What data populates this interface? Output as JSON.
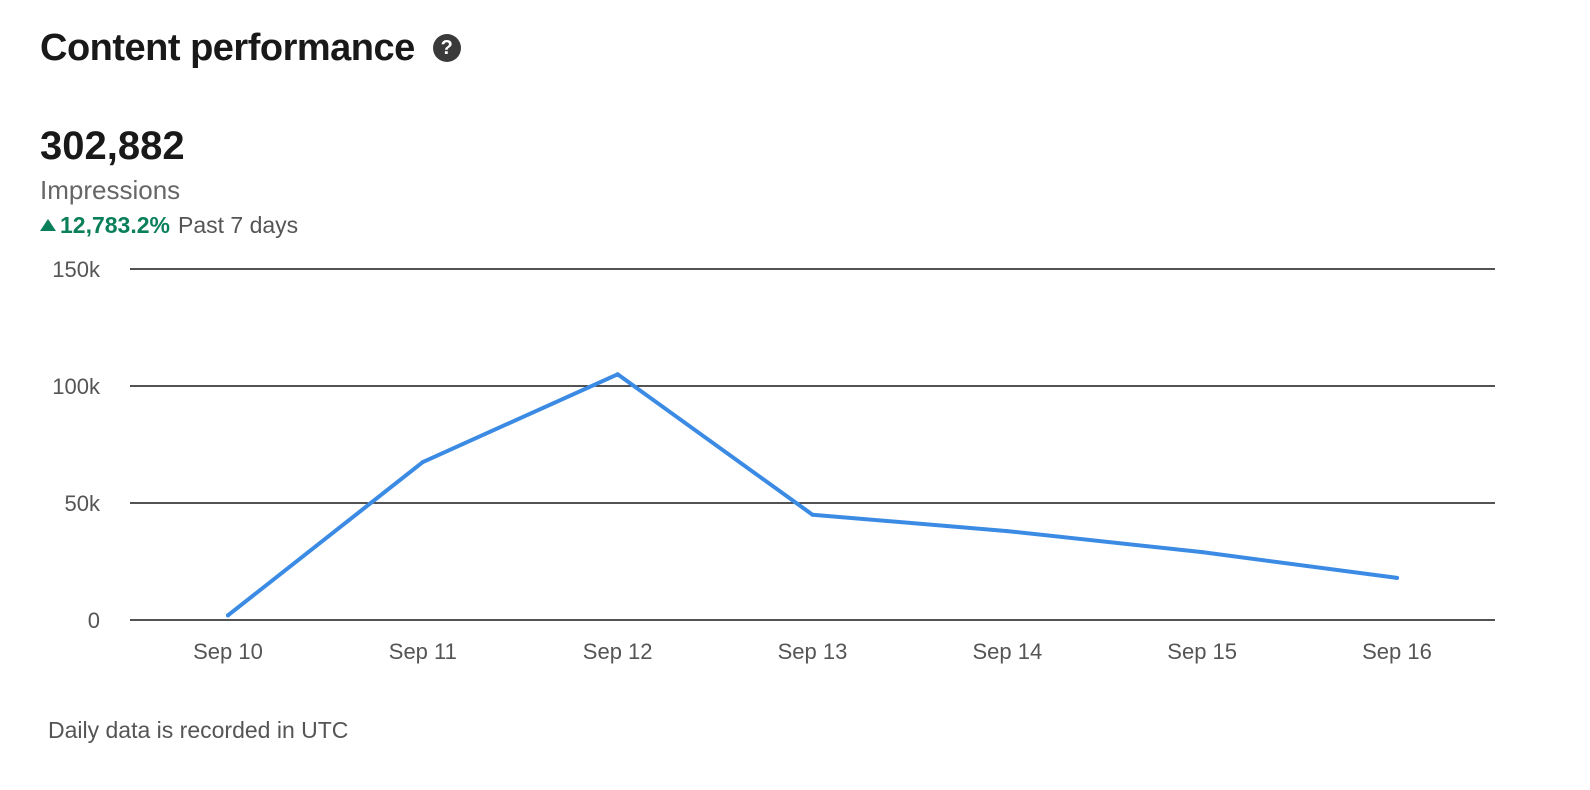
{
  "header": {
    "title": "Content performance",
    "help_icon": "question-circle-icon"
  },
  "metric": {
    "value": "302,882",
    "label": "Impressions",
    "change": "12,783.2%",
    "change_direction": "up",
    "period": "Past 7 days"
  },
  "colors": {
    "line": "#3b8be4",
    "positive": "#0a7f5a",
    "grid": "#1a1a1a"
  },
  "chart_data": {
    "type": "line",
    "categories": [
      "Sep 10",
      "Sep 11",
      "Sep 12",
      "Sep 13",
      "Sep 14",
      "Sep 15",
      "Sep 16"
    ],
    "series": [
      {
        "values": [
          2000,
          67500,
          105000,
          45000,
          38000,
          29000,
          18000
        ]
      }
    ],
    "yticks": [
      0,
      50000,
      100000,
      150000
    ],
    "ytick_labels": [
      "0",
      "50k",
      "100k",
      "150k"
    ],
    "ylim": [
      0,
      150000
    ],
    "grid": true,
    "title": "",
    "xlabel": "",
    "ylabel": ""
  },
  "footer": {
    "note": "Daily data is recorded in UTC"
  }
}
